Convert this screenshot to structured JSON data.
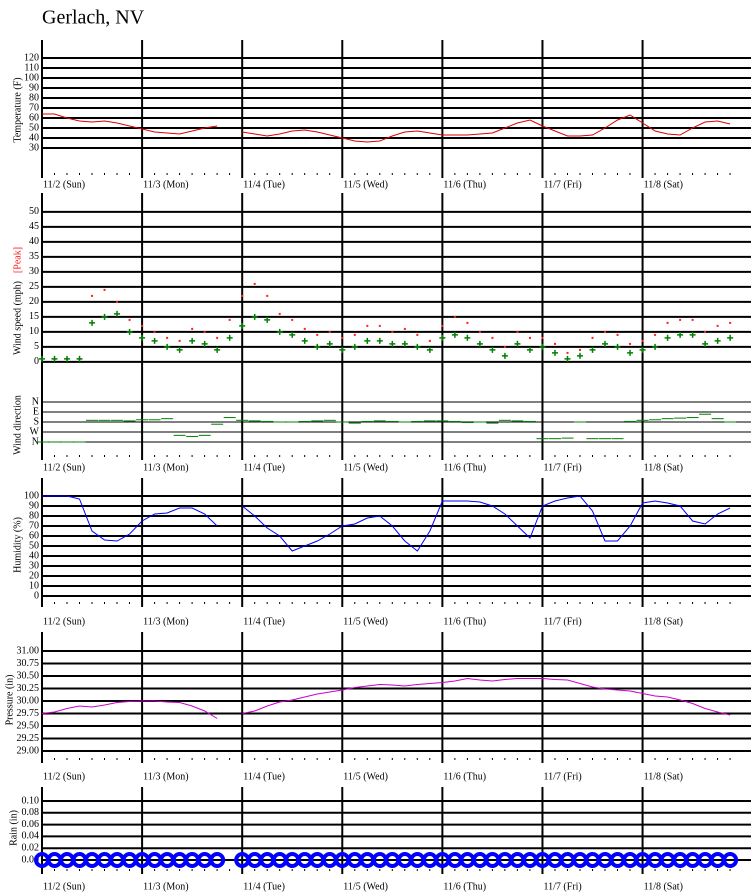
{
  "title": "Gerlach, NV",
  "chart_data": [
    {
      "type": "line",
      "ylabel": "Temperature (F)",
      "xlim": [
        0,
        170
      ],
      "ylim": [
        0,
        138
      ],
      "yticks": [
        30,
        40,
        50,
        60,
        70,
        80,
        90,
        100,
        110,
        120
      ],
      "xticks": [
        {
          "value": 0,
          "label": "11/2 (Sun)"
        },
        {
          "value": 24,
          "label": "11/3 (Mon)"
        },
        {
          "value": 48,
          "label": "11/4 (Tue)"
        },
        {
          "value": 72,
          "label": "11/5 (Wed)"
        },
        {
          "value": 96,
          "label": "11/6 (Thu)"
        },
        {
          "value": 120,
          "label": "11/7 (Fri)"
        },
        {
          "value": 144,
          "label": "11/8 (Sat)"
        }
      ],
      "x": [
        0,
        3,
        6,
        9,
        12,
        15,
        18,
        21,
        24,
        27,
        30,
        33,
        36,
        39,
        42,
        45,
        48,
        51,
        54,
        57,
        60,
        63,
        66,
        69,
        72,
        75,
        78,
        81,
        84,
        87,
        90,
        93,
        96,
        99,
        102,
        105,
        108,
        111,
        114,
        117,
        120,
        123,
        126,
        129,
        132,
        135,
        138,
        141,
        144,
        147,
        150,
        153,
        156,
        159,
        162,
        165
      ],
      "series": [
        {
          "color": "#e00000",
          "values": [
            64,
            64,
            60,
            57,
            56,
            57,
            55,
            52,
            49,
            46,
            45,
            44,
            47,
            50,
            52,
            null,
            46,
            44,
            42,
            44,
            47,
            48,
            46,
            43,
            40,
            37,
            36,
            37,
            42,
            46,
            47,
            45,
            43,
            43,
            43,
            44,
            45,
            50,
            55,
            58,
            52,
            47,
            42,
            42,
            43,
            50,
            58,
            63,
            55,
            47,
            44,
            43,
            50,
            56,
            57,
            54
          ]
        }
      ]
    },
    {
      "type": "scatter",
      "ylabel": "Wind speed (mph)",
      "y2label": "Wind direction",
      "xlim": [
        0,
        170
      ],
      "ylim": [
        -32.7,
        56.3
      ],
      "yticks": [
        0,
        5,
        10,
        15,
        20,
        25,
        30,
        35,
        40,
        45,
        50
      ],
      "y2lim": [
        522,
        -1881
      ],
      "y2ticks": [
        {
          "value": 0,
          "label": "N"
        },
        {
          "value": 90,
          "label": "E"
        },
        {
          "value": 180,
          "label": "S"
        },
        {
          "value": 270,
          "label": "W"
        },
        {
          "value": 360,
          "label": "N"
        }
      ],
      "xticks": [
        {
          "value": 0,
          "label": "11/2 (Sun)"
        },
        {
          "value": 24,
          "label": "11/3 (Mon)"
        },
        {
          "value": 48,
          "label": "11/4 (Tue)"
        },
        {
          "value": 72,
          "label": "11/5 (Wed)"
        },
        {
          "value": 96,
          "label": "11/6 (Thu)"
        },
        {
          "value": 120,
          "label": "11/7 (Fri)"
        },
        {
          "value": 144,
          "label": "11/8 (Sat)"
        }
      ],
      "x": [
        0,
        3,
        6,
        9,
        12,
        15,
        18,
        21,
        24,
        27,
        30,
        33,
        36,
        39,
        42,
        45,
        48,
        51,
        54,
        57,
        60,
        63,
        66,
        69,
        72,
        75,
        78,
        81,
        84,
        87,
        90,
        93,
        96,
        99,
        102,
        105,
        108,
        111,
        114,
        117,
        120,
        123,
        126,
        129,
        132,
        135,
        138,
        141,
        144,
        147,
        150,
        153,
        156,
        159,
        162,
        165
      ],
      "series": [
        {
          "name": "[Peak]",
          "color": "#ff2020",
          "marker": "dot",
          "values": [
            1,
            1,
            1,
            1,
            22,
            24,
            20,
            14,
            12,
            10,
            8,
            7,
            11,
            10,
            8,
            14,
            22,
            26,
            22,
            16,
            14,
            11,
            9,
            10,
            8,
            9,
            12,
            12,
            10,
            11,
            9,
            7,
            12,
            15,
            13,
            10,
            8,
            5,
            10,
            8,
            8,
            6,
            3,
            4,
            8,
            10,
            9,
            6,
            7,
            9,
            13,
            14,
            14,
            10,
            12,
            13
          ]
        },
        {
          "color": "#008000",
          "marker": "plus",
          "values": [
            1,
            1,
            1,
            1,
            13,
            15,
            16,
            10,
            8,
            7,
            5,
            4,
            7,
            6,
            4,
            8,
            12,
            15,
            14,
            10,
            9,
            7,
            5,
            6,
            4,
            5,
            7,
            7,
            6,
            6,
            5,
            4,
            8,
            9,
            8,
            6,
            4,
            2,
            6,
            4,
            5,
            3,
            1,
            2,
            4,
            6,
            5,
            3,
            4,
            5,
            8,
            9,
            9,
            6,
            7,
            8
          ]
        },
        {
          "color": "#008000",
          "marker": "dash",
          "axis": "y2",
          "values": [
            360,
            360,
            360,
            360,
            165,
            165,
            165,
            170,
            160,
            160,
            150,
            300,
            310,
            300,
            200,
            140,
            165,
            170,
            175,
            180,
            180,
            175,
            170,
            165,
            180,
            190,
            175,
            170,
            175,
            180,
            175,
            170,
            170,
            175,
            185,
            180,
            190,
            165,
            170,
            175,
            330,
            330,
            325,
            180,
            330,
            330,
            330,
            175,
            165,
            160,
            150,
            145,
            140,
            110,
            150,
            180
          ]
        }
      ]
    },
    {
      "type": "line",
      "ylabel": "Humidity (%)",
      "xlim": [
        0,
        170
      ],
      "ylim": [
        -11,
        118
      ],
      "yticks": [
        0,
        10,
        20,
        30,
        40,
        50,
        60,
        70,
        80,
        90,
        100
      ],
      "xticks": [
        {
          "value": 0,
          "label": "11/2 (Sun)"
        },
        {
          "value": 24,
          "label": "11/3 (Mon)"
        },
        {
          "value": 48,
          "label": "11/4 (Tue)"
        },
        {
          "value": 72,
          "label": "11/5 (Wed)"
        },
        {
          "value": 96,
          "label": "11/6 (Thu)"
        },
        {
          "value": 120,
          "label": "11/7 (Fri)"
        },
        {
          "value": 144,
          "label": "11/8 (Sat)"
        }
      ],
      "x": [
        0,
        3,
        6,
        9,
        12,
        15,
        18,
        21,
        24,
        27,
        30,
        33,
        36,
        39,
        42,
        45,
        48,
        51,
        54,
        57,
        60,
        63,
        66,
        69,
        72,
        75,
        78,
        81,
        84,
        87,
        90,
        93,
        96,
        99,
        102,
        105,
        108,
        111,
        114,
        117,
        120,
        123,
        126,
        129,
        132,
        135,
        138,
        141,
        144,
        147,
        150,
        153,
        156,
        159,
        162,
        165
      ],
      "series": [
        {
          "color": "#0000ff",
          "values": [
            100,
            100,
            100,
            97,
            65,
            56,
            55,
            62,
            75,
            82,
            83,
            88,
            88,
            82,
            70,
            null,
            90,
            80,
            68,
            60,
            45,
            50,
            55,
            62,
            70,
            72,
            78,
            80,
            70,
            55,
            45,
            65,
            95,
            95,
            95,
            94,
            90,
            82,
            70,
            58,
            90,
            95,
            98,
            100,
            85,
            55,
            55,
            70,
            93,
            95,
            93,
            90,
            75,
            72,
            82,
            88
          ]
        }
      ]
    },
    {
      "type": "line",
      "ylabel": "Pressure (in)",
      "xlim": [
        0,
        170
      ],
      "ylim": [
        28.76,
        31.38
      ],
      "yticks": [
        {
          "value": 29,
          "label": "29.00"
        },
        {
          "value": 29.25,
          "label": "29.25"
        },
        {
          "value": 29.5,
          "label": "29.50"
        },
        {
          "value": 29.75,
          "label": "29.75"
        },
        {
          "value": 30,
          "label": "30.00"
        },
        {
          "value": 30.25,
          "label": "30.25"
        },
        {
          "value": 30.5,
          "label": "30.50"
        },
        {
          "value": 30.75,
          "label": "30.75"
        },
        {
          "value": 31,
          "label": "31.00"
        }
      ],
      "xticks": [
        {
          "value": 0,
          "label": "11/2 (Sun)"
        },
        {
          "value": 24,
          "label": "11/3 (Mon)"
        },
        {
          "value": 48,
          "label": "11/4 (Tue)"
        },
        {
          "value": 72,
          "label": "11/5 (Wed)"
        },
        {
          "value": 96,
          "label": "11/6 (Thu)"
        },
        {
          "value": 120,
          "label": "11/7 (Fri)"
        },
        {
          "value": 144,
          "label": "11/8 (Sat)"
        }
      ],
      "x": [
        0,
        3,
        6,
        9,
        12,
        15,
        18,
        21,
        24,
        27,
        30,
        33,
        36,
        39,
        42,
        45,
        48,
        51,
        54,
        57,
        60,
        63,
        66,
        69,
        72,
        75,
        78,
        81,
        84,
        87,
        90,
        93,
        96,
        99,
        102,
        105,
        108,
        111,
        114,
        117,
        120,
        123,
        126,
        129,
        132,
        135,
        138,
        141,
        144,
        147,
        150,
        153,
        156,
        159,
        162,
        165
      ],
      "series": [
        {
          "color": "#cc00cc",
          "values": [
            29.75,
            29.78,
            29.85,
            29.9,
            29.88,
            29.92,
            29.97,
            29.99,
            30,
            30,
            29.98,
            29.97,
            29.9,
            29.8,
            29.65,
            null,
            29.75,
            29.8,
            29.9,
            29.98,
            30.02,
            30.08,
            30.14,
            30.18,
            30.22,
            30.27,
            30.3,
            30.33,
            30.32,
            30.3,
            30.33,
            30.35,
            30.37,
            30.4,
            30.45,
            30.42,
            30.4,
            30.43,
            30.45,
            30.45,
            30.45,
            30.43,
            30.42,
            30.35,
            30.28,
            30.24,
            30.22,
            30.2,
            30.15,
            30.1,
            30.08,
            30.02,
            29.95,
            29.85,
            29.78,
            29.72
          ]
        }
      ]
    },
    {
      "type": "scatter",
      "ylabel": "Rain (in)",
      "xlim": [
        0,
        170
      ],
      "ylim": [
        -0.0237,
        0.1237
      ],
      "yticks": [
        {
          "value": 0,
          "label": "0.00"
        },
        {
          "value": 0.02,
          "label": "0.02"
        },
        {
          "value": 0.04,
          "label": "0.04"
        },
        {
          "value": 0.06,
          "label": "0.06"
        },
        {
          "value": 0.08,
          "label": "0.08"
        },
        {
          "value": 0.1,
          "label": "0.10"
        }
      ],
      "xticks": [
        {
          "value": 0,
          "label": "11/2 (Sun)"
        },
        {
          "value": 24,
          "label": "11/3 (Mon)"
        },
        {
          "value": 48,
          "label": "11/4 (Tue)"
        },
        {
          "value": 72,
          "label": "11/5 (Wed)"
        },
        {
          "value": 96,
          "label": "11/6 (Thu)"
        },
        {
          "value": 120,
          "label": "11/7 (Fri)"
        },
        {
          "value": 144,
          "label": "11/8 (Sat)"
        }
      ],
      "x": [
        0,
        3,
        6,
        9,
        12,
        15,
        18,
        21,
        24,
        27,
        30,
        33,
        36,
        39,
        42,
        45,
        48,
        51,
        54,
        57,
        60,
        63,
        66,
        69,
        72,
        75,
        78,
        81,
        84,
        87,
        90,
        93,
        96,
        99,
        102,
        105,
        108,
        111,
        114,
        117,
        120,
        123,
        126,
        129,
        132,
        135,
        138,
        141,
        144,
        147,
        150,
        153,
        156,
        159,
        162,
        165
      ],
      "series": [
        {
          "color": "#0000ff",
          "marker": "circle",
          "values": [
            0,
            0,
            0,
            0,
            0,
            0,
            0,
            0,
            0,
            0,
            0,
            0,
            0,
            0,
            0,
            null,
            0,
            0,
            0,
            0,
            0,
            0,
            0,
            0,
            0,
            0,
            0,
            0,
            0,
            0,
            0,
            0,
            0,
            0,
            0,
            0,
            0,
            0,
            0,
            0,
            0,
            0,
            0,
            0,
            0,
            0,
            0,
            0,
            0,
            0,
            0,
            0,
            0,
            0,
            0,
            0
          ]
        }
      ]
    }
  ]
}
